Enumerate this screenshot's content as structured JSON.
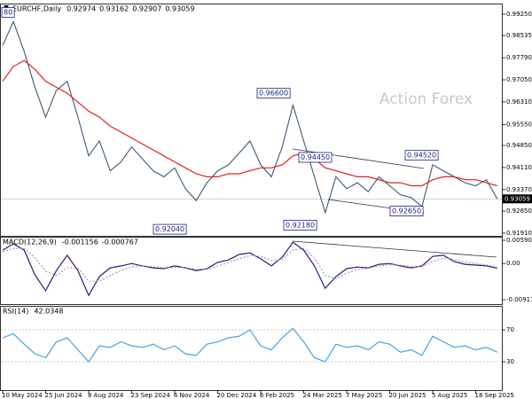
{
  "watermark": "Action Forex",
  "chart_data": [
    {
      "type": "line",
      "title": "EURCHF,Daily",
      "ohlc": [
        0.92974,
        0.93162,
        0.92907,
        0.93059
      ],
      "last_price": 0.93059,
      "categories": [
        "10 May 2024",
        null,
        null,
        null,
        "25 Jun 2024",
        null,
        null,
        null,
        "8 Aug 2024",
        null,
        null,
        null,
        "23 Sep 2024",
        null,
        null,
        null,
        "6 Nov 2024",
        null,
        null,
        null,
        "20 Dec 2024",
        null,
        null,
        null,
        "6 Feb 2025",
        null,
        null,
        null,
        "24 Mar 2025",
        null,
        null,
        null,
        "7 May 2025",
        null,
        null,
        null,
        "20 Jun 2025",
        null,
        null,
        null,
        "5 Aug 2025",
        null,
        null,
        null,
        "18 Sep 2025",
        null,
        null
      ],
      "series": [
        {
          "color": "#3d5a73",
          "values": [
            0.982,
            0.99,
            0.98,
            0.968,
            0.958,
            0.967,
            0.97,
            0.958,
            0.945,
            0.95,
            0.94,
            0.943,
            0.948,
            0.944,
            0.94,
            0.938,
            0.941,
            0.934,
            0.93,
            0.936,
            0.94,
            0.942,
            0.946,
            0.95,
            0.942,
            0.938,
            0.948,
            0.962,
            0.95,
            0.938,
            0.926,
            0.938,
            0.934,
            0.936,
            0.933,
            0.938,
            0.935,
            0.932,
            0.931,
            0.928,
            0.942,
            0.94,
            0.938,
            0.936,
            0.935,
            0.937,
            0.9306
          ]
        },
        {
          "color": "#e02020",
          "values": [
            0.97,
            0.975,
            0.977,
            0.974,
            0.97,
            0.968,
            0.966,
            0.963,
            0.96,
            0.958,
            0.955,
            0.953,
            0.951,
            0.949,
            0.947,
            0.945,
            0.943,
            0.941,
            0.939,
            0.938,
            0.938,
            0.939,
            0.939,
            0.94,
            0.941,
            0.941,
            0.942,
            0.945,
            0.946,
            0.944,
            0.941,
            0.94,
            0.939,
            0.938,
            0.938,
            0.937,
            0.936,
            0.936,
            0.935,
            0.935,
            0.937,
            0.938,
            0.938,
            0.937,
            0.937,
            0.936,
            0.935
          ]
        }
      ],
      "annotations": [
        {
          "label": "80"
        },
        {
          "label": "0.92040",
          "value": 0.9204
        },
        {
          "label": "0.96600",
          "value": 0.966
        },
        {
          "label": "0.92180",
          "value": 0.9218
        },
        {
          "label": "0.94450",
          "value": 0.9445
        },
        {
          "label": "0.92650",
          "value": 0.9265
        },
        {
          "label": "0.94520",
          "value": 0.9452
        }
      ],
      "ylim": [
        0.9182,
        0.99577
      ],
      "yticks": [
        {
          "value": 0.9925,
          "label": "0.99250"
        },
        {
          "value": 0.98535,
          "label": "0.98535"
        },
        {
          "value": 0.9779,
          "label": "0.97790"
        },
        {
          "value": 0.9705,
          "label": "0.97050"
        },
        {
          "value": 0.9631,
          "label": "0.96310"
        },
        {
          "value": 0.9555,
          "label": "0.95550"
        },
        {
          "value": 0.9485,
          "label": "0.94850"
        },
        {
          "value": 0.9411,
          "label": "0.94110"
        },
        {
          "value": 0.9337,
          "label": "0.93370"
        },
        {
          "value": 0.9265,
          "label": "0.92650"
        },
        {
          "value": 0.9191,
          "label": "0.91910"
        }
      ]
    },
    {
      "type": "line",
      "title": "MACD(12,26,9)",
      "readings": [
        -0.001156,
        -0.000767
      ],
      "series": [
        {
          "color": "#1a237e",
          "values": [
            0.0034,
            0.005,
            0.0034,
            -0.0029,
            -0.0069,
            -0.0018,
            0.0021,
            -0.0018,
            -0.0081,
            -0.0033,
            -0.0011,
            -0.0006,
            0.0,
            -0.0006,
            -0.0011,
            -0.0013,
            -0.0006,
            -0.0011,
            -0.0018,
            -0.0013,
            0.0003,
            0.0009,
            0.0023,
            0.0027,
            0.0012,
            -0.0006,
            0.0016,
            0.0054,
            0.0034,
            -0.0006,
            -0.0063,
            -0.0033,
            -0.0013,
            -0.0009,
            -0.0011,
            -0.0002,
            0.0,
            -0.0006,
            -0.0011,
            -0.0006,
            0.0018,
            0.0021,
            0.0005,
            -0.0002,
            -0.0004,
            -0.0006,
            -0.0012
          ]
        },
        {
          "color": "#a0a0a0",
          "dash": true,
          "values": [
            0.003,
            0.0038,
            0.0038,
            0.0015,
            -0.002,
            -0.003,
            -0.001,
            -0.0012,
            -0.0045,
            -0.0045,
            -0.003,
            -0.0018,
            -0.0008,
            -0.0006,
            -0.0008,
            -0.0011,
            -0.001,
            -0.001,
            -0.0014,
            -0.0014,
            -0.0006,
            0.0002,
            0.0012,
            0.002,
            0.0018,
            0.0008,
            0.001,
            0.0035,
            0.0038,
            0.0015,
            -0.003,
            -0.0038,
            -0.0025,
            -0.0015,
            -0.0012,
            -0.0006,
            -0.0003,
            -0.0004,
            -0.0008,
            -0.0008,
            0.0005,
            0.0014,
            0.001,
            0.0004,
            0.0,
            -0.0004,
            -0.0008
          ]
        }
      ],
      "ylim": [
        -0.0103,
        0.00658
      ],
      "yticks": [
        0.005907,
        {
          "value": 0,
          "label": "0.00"
        },
        -0.009175
      ]
    },
    {
      "type": "line",
      "title": "RSI(14)",
      "readings": [
        42.0348
      ],
      "series": [
        {
          "color": "#4aa3e0",
          "values": [
            60,
            65,
            52,
            40,
            35,
            55,
            60,
            45,
            30,
            50,
            48,
            55,
            50,
            48,
            52,
            45,
            50,
            40,
            38,
            52,
            55,
            60,
            62,
            70,
            50,
            45,
            60,
            72,
            55,
            35,
            30,
            52,
            48,
            50,
            45,
            55,
            52,
            42,
            45,
            38,
            62,
            55,
            48,
            50,
            45,
            48,
            42
          ]
        }
      ],
      "ylim": [
        -5.6,
        98.9
      ],
      "yticks": [
        70,
        30
      ]
    }
  ]
}
